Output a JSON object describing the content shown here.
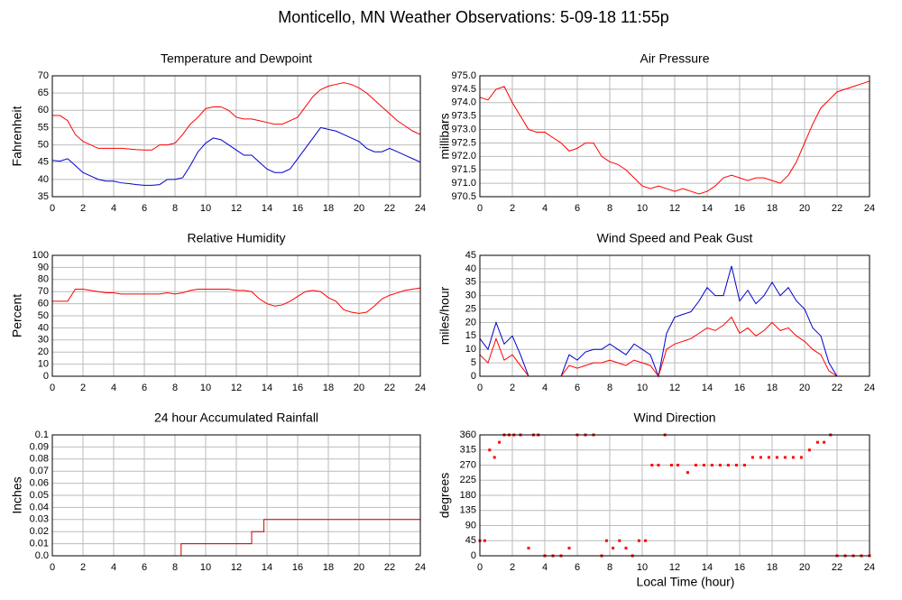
{
  "title": "Monticello, MN Weather Observations: 5-09-18 11:55p",
  "xlabel": "Local Time (hour)",
  "chart_data": [
    {
      "type": "line",
      "title": "Temperature and Dewpoint",
      "ylabel": "Fahrenheit",
      "x": [
        0,
        0.5,
        1,
        1.5,
        2,
        2.5,
        3,
        3.5,
        4,
        4.5,
        5,
        5.5,
        6,
        6.5,
        7,
        7.5,
        8,
        8.5,
        9,
        9.5,
        10,
        10.5,
        11,
        11.5,
        12,
        12.5,
        13,
        13.5,
        14,
        14.5,
        15,
        15.5,
        16,
        16.5,
        17,
        17.5,
        18,
        18.5,
        19,
        19.5,
        20,
        20.5,
        21,
        21.5,
        22,
        22.5,
        23,
        23.5,
        24
      ],
      "series": [
        {
          "color": "#ff0000",
          "values": [
            58.5,
            58.5,
            57,
            53,
            51,
            50,
            49,
            49,
            49,
            49,
            48.8,
            48.6,
            48.5,
            48.5,
            50,
            50,
            50.5,
            53,
            56,
            58,
            60.5,
            61,
            61,
            60,
            58,
            57.5,
            57.5,
            57,
            56.5,
            56,
            56,
            57,
            58,
            61,
            64,
            66,
            67,
            67.5,
            68,
            67.5,
            66.5,
            65,
            63,
            61,
            59,
            57,
            55.5,
            54,
            53
          ]
        },
        {
          "color": "#0000cc",
          "values": [
            45.5,
            45.3,
            46,
            44,
            42,
            41,
            40,
            39.5,
            39.5,
            39,
            38.8,
            38.5,
            38.3,
            38.3,
            38.5,
            40,
            40,
            40.5,
            44,
            48,
            50.5,
            52,
            51.5,
            50,
            48.5,
            47,
            47,
            45,
            43,
            42,
            42,
            43,
            46,
            49,
            52,
            55,
            54.5,
            54,
            53,
            52,
            51,
            49,
            48,
            48,
            49,
            48,
            47,
            46,
            45
          ]
        }
      ],
      "xlim": [
        0,
        24
      ],
      "xticks": [
        0,
        2,
        4,
        6,
        8,
        10,
        12,
        14,
        16,
        18,
        20,
        22,
        24
      ],
      "ylim": [
        35,
        70
      ],
      "yticks": [
        35,
        40,
        45,
        50,
        55,
        60,
        65,
        70
      ],
      "grid": true
    },
    {
      "type": "line",
      "title": "Air Pressure",
      "ylabel": "millibars",
      "x": [
        0,
        0.5,
        1,
        1.5,
        2,
        2.5,
        3,
        3.5,
        4,
        4.5,
        5,
        5.5,
        6,
        6.5,
        7,
        7.5,
        8,
        8.5,
        9,
        9.5,
        10,
        10.5,
        11,
        11.5,
        12,
        12.5,
        13,
        13.5,
        14,
        14.5,
        15,
        15.5,
        16,
        16.5,
        17,
        17.5,
        18,
        18.5,
        19,
        19.5,
        20,
        20.5,
        21,
        21.5,
        22,
        22.5,
        23,
        23.5,
        24
      ],
      "series": [
        {
          "color": "#ff0000",
          "values": [
            974.2,
            974.1,
            974.5,
            974.6,
            974.0,
            973.5,
            973.0,
            972.9,
            972.9,
            972.7,
            972.5,
            972.2,
            972.3,
            972.5,
            972.5,
            972.0,
            971.8,
            971.7,
            971.5,
            971.2,
            970.9,
            970.8,
            970.9,
            970.8,
            970.7,
            970.8,
            970.7,
            970.6,
            970.7,
            970.9,
            971.2,
            971.3,
            971.2,
            971.1,
            971.2,
            971.2,
            971.1,
            971.0,
            971.3,
            971.8,
            972.5,
            973.2,
            973.8,
            974.1,
            974.4,
            974.5,
            974.6,
            974.7,
            974.8
          ]
        }
      ],
      "xlim": [
        0,
        24
      ],
      "xticks": [
        0,
        2,
        4,
        6,
        8,
        10,
        12,
        14,
        16,
        18,
        20,
        22,
        24
      ],
      "ylim": [
        970.5,
        975
      ],
      "yticks": [
        970.5,
        {
          "value": 971,
          "label": "971.0"
        },
        971.5,
        {
          "value": 972,
          "label": "972.0"
        },
        972.5,
        {
          "value": 973,
          "label": "973.0"
        },
        973.5,
        {
          "value": 974,
          "label": "974.0"
        },
        974.5,
        {
          "value": 975,
          "label": "975.0"
        }
      ],
      "grid": true
    },
    {
      "type": "line",
      "title": "Relative Humidity",
      "ylabel": "Percent",
      "x": [
        0,
        0.5,
        1,
        1.5,
        2,
        2.5,
        3,
        3.5,
        4,
        4.5,
        5,
        5.5,
        6,
        6.5,
        7,
        7.5,
        8,
        8.5,
        9,
        9.5,
        10,
        10.5,
        11,
        11.5,
        12,
        12.5,
        13,
        13.5,
        14,
        14.5,
        15,
        15.5,
        16,
        16.5,
        17,
        17.5,
        18,
        18.5,
        19,
        19.5,
        20,
        20.5,
        21,
        21.5,
        22,
        22.5,
        23,
        23.5,
        24
      ],
      "series": [
        {
          "color": "#ff0000",
          "values": [
            62,
            62,
            62,
            72,
            72,
            71,
            70,
            69,
            69,
            68,
            68,
            68,
            68,
            68,
            68,
            69,
            68,
            69,
            71,
            72,
            72,
            72,
            72,
            72,
            71,
            71,
            70,
            64,
            60,
            58,
            59,
            62,
            66,
            70,
            71,
            70,
            65,
            62,
            55,
            53,
            52,
            53,
            58,
            64,
            67,
            69,
            71,
            72,
            73
          ]
        }
      ],
      "xlim": [
        0,
        24
      ],
      "xticks": [
        0,
        2,
        4,
        6,
        8,
        10,
        12,
        14,
        16,
        18,
        20,
        22,
        24
      ],
      "ylim": [
        0,
        100
      ],
      "yticks": [
        0,
        10,
        20,
        30,
        40,
        50,
        60,
        70,
        80,
        90,
        100
      ],
      "grid": true
    },
    {
      "type": "line",
      "title": "Wind Speed and Peak Gust",
      "ylabel": "miles/hour",
      "x": [
        0,
        0.5,
        1,
        1.5,
        2,
        2.5,
        3,
        3.5,
        4,
        4.5,
        5,
        5.5,
        6,
        6.5,
        7,
        7.5,
        8,
        8.5,
        9,
        9.5,
        10,
        10.5,
        11,
        11.5,
        12,
        12.5,
        13,
        13.5,
        14,
        14.5,
        15,
        15.5,
        16,
        16.5,
        17,
        17.5,
        18,
        18.5,
        19,
        19.5,
        20,
        20.5,
        21,
        21.5,
        22,
        22.5,
        23,
        23.5,
        24
      ],
      "series": [
        {
          "color": "#0000cc",
          "values": [
            14,
            10,
            20,
            12,
            15,
            8,
            0,
            0,
            0,
            0,
            0,
            8,
            6,
            9,
            10,
            10,
            12,
            10,
            8,
            12,
            10,
            8,
            0,
            16,
            22,
            23,
            24,
            28,
            33,
            30,
            30,
            41,
            28,
            32,
            27,
            30,
            35,
            30,
            33,
            28,
            25,
            18,
            15,
            5,
            0,
            0,
            0,
            0,
            0
          ]
        },
        {
          "color": "#ff0000",
          "values": [
            8,
            5,
            14,
            6,
            8,
            4,
            0,
            0,
            0,
            0,
            0,
            4,
            3,
            4,
            5,
            5,
            6,
            5,
            4,
            6,
            5,
            4,
            0,
            10,
            12,
            13,
            14,
            16,
            18,
            17,
            19,
            22,
            16,
            18,
            15,
            17,
            20,
            17,
            18,
            15,
            13,
            10,
            8,
            2,
            0,
            0,
            0,
            0,
            0
          ]
        }
      ],
      "xlim": [
        0,
        24
      ],
      "xticks": [
        0,
        2,
        4,
        6,
        8,
        10,
        12,
        14,
        16,
        18,
        20,
        22,
        24
      ],
      "ylim": [
        0,
        45
      ],
      "yticks": [
        0,
        5,
        10,
        15,
        20,
        25,
        30,
        35,
        40,
        45
      ],
      "grid": true
    },
    {
      "type": "line",
      "title": "24 hour Accumulated Rainfall",
      "ylabel": "Inches",
      "x": [
        0,
        8.4,
        8.4,
        13,
        13,
        13.8,
        13.8,
        24
      ],
      "series": [
        {
          "color": "#cc0000",
          "values": [
            0,
            0,
            0.01,
            0.01,
            0.02,
            0.02,
            0.03,
            0.03
          ]
        }
      ],
      "xlim": [
        0,
        24
      ],
      "xticks": [
        0,
        2,
        4,
        6,
        8,
        10,
        12,
        14,
        16,
        18,
        20,
        22,
        24
      ],
      "ylim": [
        0,
        0.1
      ],
      "yticks": [
        {
          "value": 0,
          "label": "0.0"
        },
        0.01,
        0.02,
        0.03,
        0.04,
        0.05,
        0.06,
        0.07,
        0.08,
        0.09,
        0.1
      ],
      "grid": true
    },
    {
      "type": "scatter",
      "title": "Wind Direction",
      "ylabel": "degrees",
      "x": [
        0,
        0.3,
        0.6,
        0.9,
        1.2,
        1.5,
        1.8,
        2.1,
        2.5,
        3,
        3.3,
        3.6,
        4,
        4.5,
        5,
        5.5,
        6,
        6.5,
        7,
        7.5,
        7.8,
        8.2,
        8.6,
        9,
        9.4,
        9.8,
        10.2,
        10.6,
        11,
        11.4,
        11.8,
        12.2,
        12.8,
        13.3,
        13.8,
        14.3,
        14.8,
        15.3,
        15.8,
        16.3,
        16.8,
        17.3,
        17.8,
        18.3,
        18.8,
        19.3,
        19.8,
        20.3,
        20.8,
        21.2,
        21.6,
        22,
        22.5,
        23,
        23.5,
        24
      ],
      "series": [
        {
          "color": "#ff0000",
          "values": [
            45,
            45,
            315,
            293,
            338,
            360,
            360,
            360,
            360,
            23,
            360,
            360,
            0,
            0,
            0,
            23,
            360,
            360,
            360,
            0,
            45,
            23,
            45,
            23,
            0,
            45,
            45,
            270,
            270,
            360,
            270,
            270,
            248,
            270,
            270,
            270,
            270,
            270,
            270,
            270,
            293,
            293,
            293,
            293,
            293,
            293,
            293,
            315,
            338,
            338,
            360,
            0,
            0,
            0,
            0,
            0
          ]
        }
      ],
      "xlim": [
        0,
        24
      ],
      "xticks": [
        0,
        2,
        4,
        6,
        8,
        10,
        12,
        14,
        16,
        18,
        20,
        22,
        24
      ],
      "ylim": [
        0,
        360
      ],
      "yticks": [
        0,
        45,
        90,
        135,
        180,
        225,
        270,
        315,
        360
      ],
      "grid": true
    }
  ]
}
